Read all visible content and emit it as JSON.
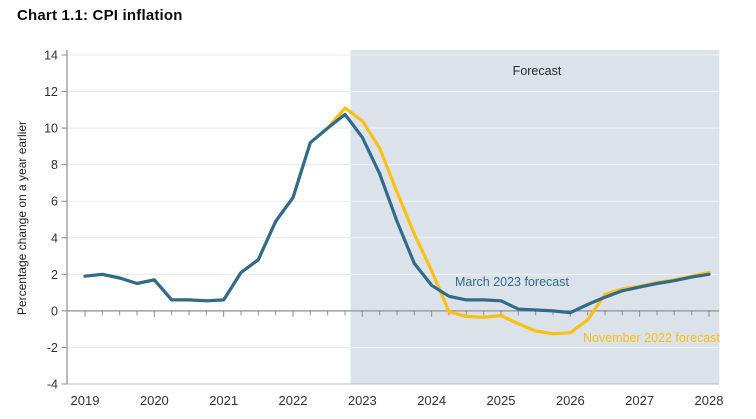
{
  "title": "Chart 1.1: CPI inflation",
  "chart_data": {
    "type": "line",
    "title": "Chart 1.1: CPI inflation",
    "xlabel": "",
    "ylabel": "Percentage change on a year earlier",
    "ylim": [
      -4,
      14
    ],
    "ytick_labels": [
      14,
      12,
      10,
      8,
      6,
      4,
      2,
      0,
      -2,
      -4
    ],
    "xtick_labels": [
      2019,
      2020,
      2021,
      2022,
      2023,
      2024,
      2025,
      2026,
      2027,
      2028
    ],
    "grid": "horizontal-light",
    "legend_position": "inline-labels-on-chart",
    "forecast_band": {
      "label": "Forecast",
      "x_start": 2022.83,
      "x_end": 2028.15,
      "color": "#dbe2ea"
    },
    "x_start": 2019.0,
    "x_step": 0.25,
    "series": [
      {
        "name": "November 2022 forecast",
        "color": "#fcbf13",
        "values": [
          1.9,
          2.0,
          1.8,
          1.5,
          1.7,
          0.6,
          0.6,
          0.55,
          0.6,
          2.1,
          2.8,
          4.9,
          6.2,
          9.2,
          10.0,
          11.1,
          10.4,
          8.9,
          6.5,
          4.2,
          2.2,
          -0.05,
          -0.3,
          -0.35,
          -0.25,
          -0.7,
          -1.1,
          -1.25,
          -1.2,
          -0.5,
          0.9,
          1.2,
          1.35,
          1.55,
          1.7,
          1.9,
          2.1
        ]
      },
      {
        "name": "March 2023 forecast",
        "color": "#316b8c",
        "values": [
          1.9,
          2.0,
          1.8,
          1.5,
          1.7,
          0.6,
          0.6,
          0.55,
          0.6,
          2.1,
          2.8,
          4.9,
          6.2,
          9.2,
          10.0,
          10.75,
          9.5,
          7.5,
          4.9,
          2.6,
          1.4,
          0.8,
          0.6,
          0.6,
          0.55,
          0.1,
          0.05,
          0.0,
          -0.1,
          0.35,
          0.75,
          1.1,
          1.3,
          1.5,
          1.65,
          1.85,
          2.0
        ]
      }
    ],
    "annotations": [
      {
        "text": "Forecast",
        "color": "#2b2b2b"
      },
      {
        "text": "March 2023 forecast",
        "color": "#316b8c"
      },
      {
        "text": "November 2022 forecast",
        "color": "#fcbf13"
      }
    ],
    "axis_colors": {
      "zero_line": "#8f8f8f",
      "y_axis_line": "#8f8f8f",
      "bottom_line": "#bdbdbd",
      "gridline": "#e9e9e9",
      "tick_text": "#333333"
    }
  }
}
